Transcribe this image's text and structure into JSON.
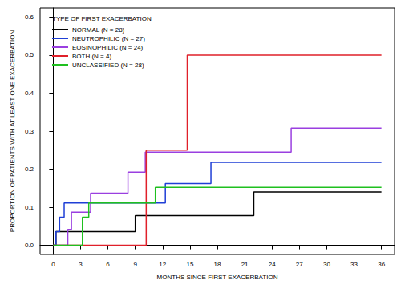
{
  "chart_data": {
    "type": "line",
    "line_style": "step",
    "legend_title": "TYPE OF FIRST EXACERBATION",
    "x_label": "MONTHS SINCE FIRST EXACERBATION",
    "y_label": "PROPORTION OF PATIENTS WITH AT LEAST ONE EXACERBATION",
    "xlim": [
      -1.44,
      37.44
    ],
    "ylim": [
      -0.024,
      0.624
    ],
    "xticks": [
      0,
      3,
      6,
      9,
      12,
      15,
      18,
      21,
      24,
      27,
      30,
      33,
      36
    ],
    "yticks": [
      {
        "value": 0,
        "label": "0.0"
      },
      0.1,
      0.2,
      0.3,
      0.4,
      0.5,
      0.6
    ],
    "grid": false,
    "legend": "upper left",
    "series": [
      {
        "name": "NORMAL (N = 28)",
        "color": "#000000",
        "x": [
          0,
          0.3,
          9,
          22,
          36
        ],
        "values": [
          0,
          0.036,
          0.078,
          0.14,
          0.14
        ]
      },
      {
        "name": "NEUTROPHILIC (N = 27)",
        "color": "#1f3fd6",
        "x": [
          0,
          0.3,
          0.7,
          1.2,
          12.3,
          17.3,
          36
        ],
        "values": [
          0,
          0.036,
          0.074,
          0.111,
          0.162,
          0.218,
          0.218
        ]
      },
      {
        "name": "EOSINOPHILIC (N = 24)",
        "color": "#9a3fe0",
        "x": [
          0,
          1.6,
          2.0,
          4.1,
          8.2,
          10.1,
          26.1,
          36
        ],
        "values": [
          0,
          0.042,
          0.087,
          0.137,
          0.192,
          0.245,
          0.308,
          0.308
        ]
      },
      {
        "name": "BOTH (N = 4)",
        "color": "#e0202a",
        "x": [
          0,
          10.2,
          14.7,
          36
        ],
        "values": [
          0,
          0.25,
          0.5,
          0.5
        ]
      },
      {
        "name": "UNCLASSIFIED (N = 28)",
        "color": "#1fc01f",
        "x": [
          0,
          3.2,
          3.9,
          11.2,
          36
        ],
        "values": [
          0,
          0.074,
          0.111,
          0.152,
          0.152
        ]
      }
    ]
  }
}
